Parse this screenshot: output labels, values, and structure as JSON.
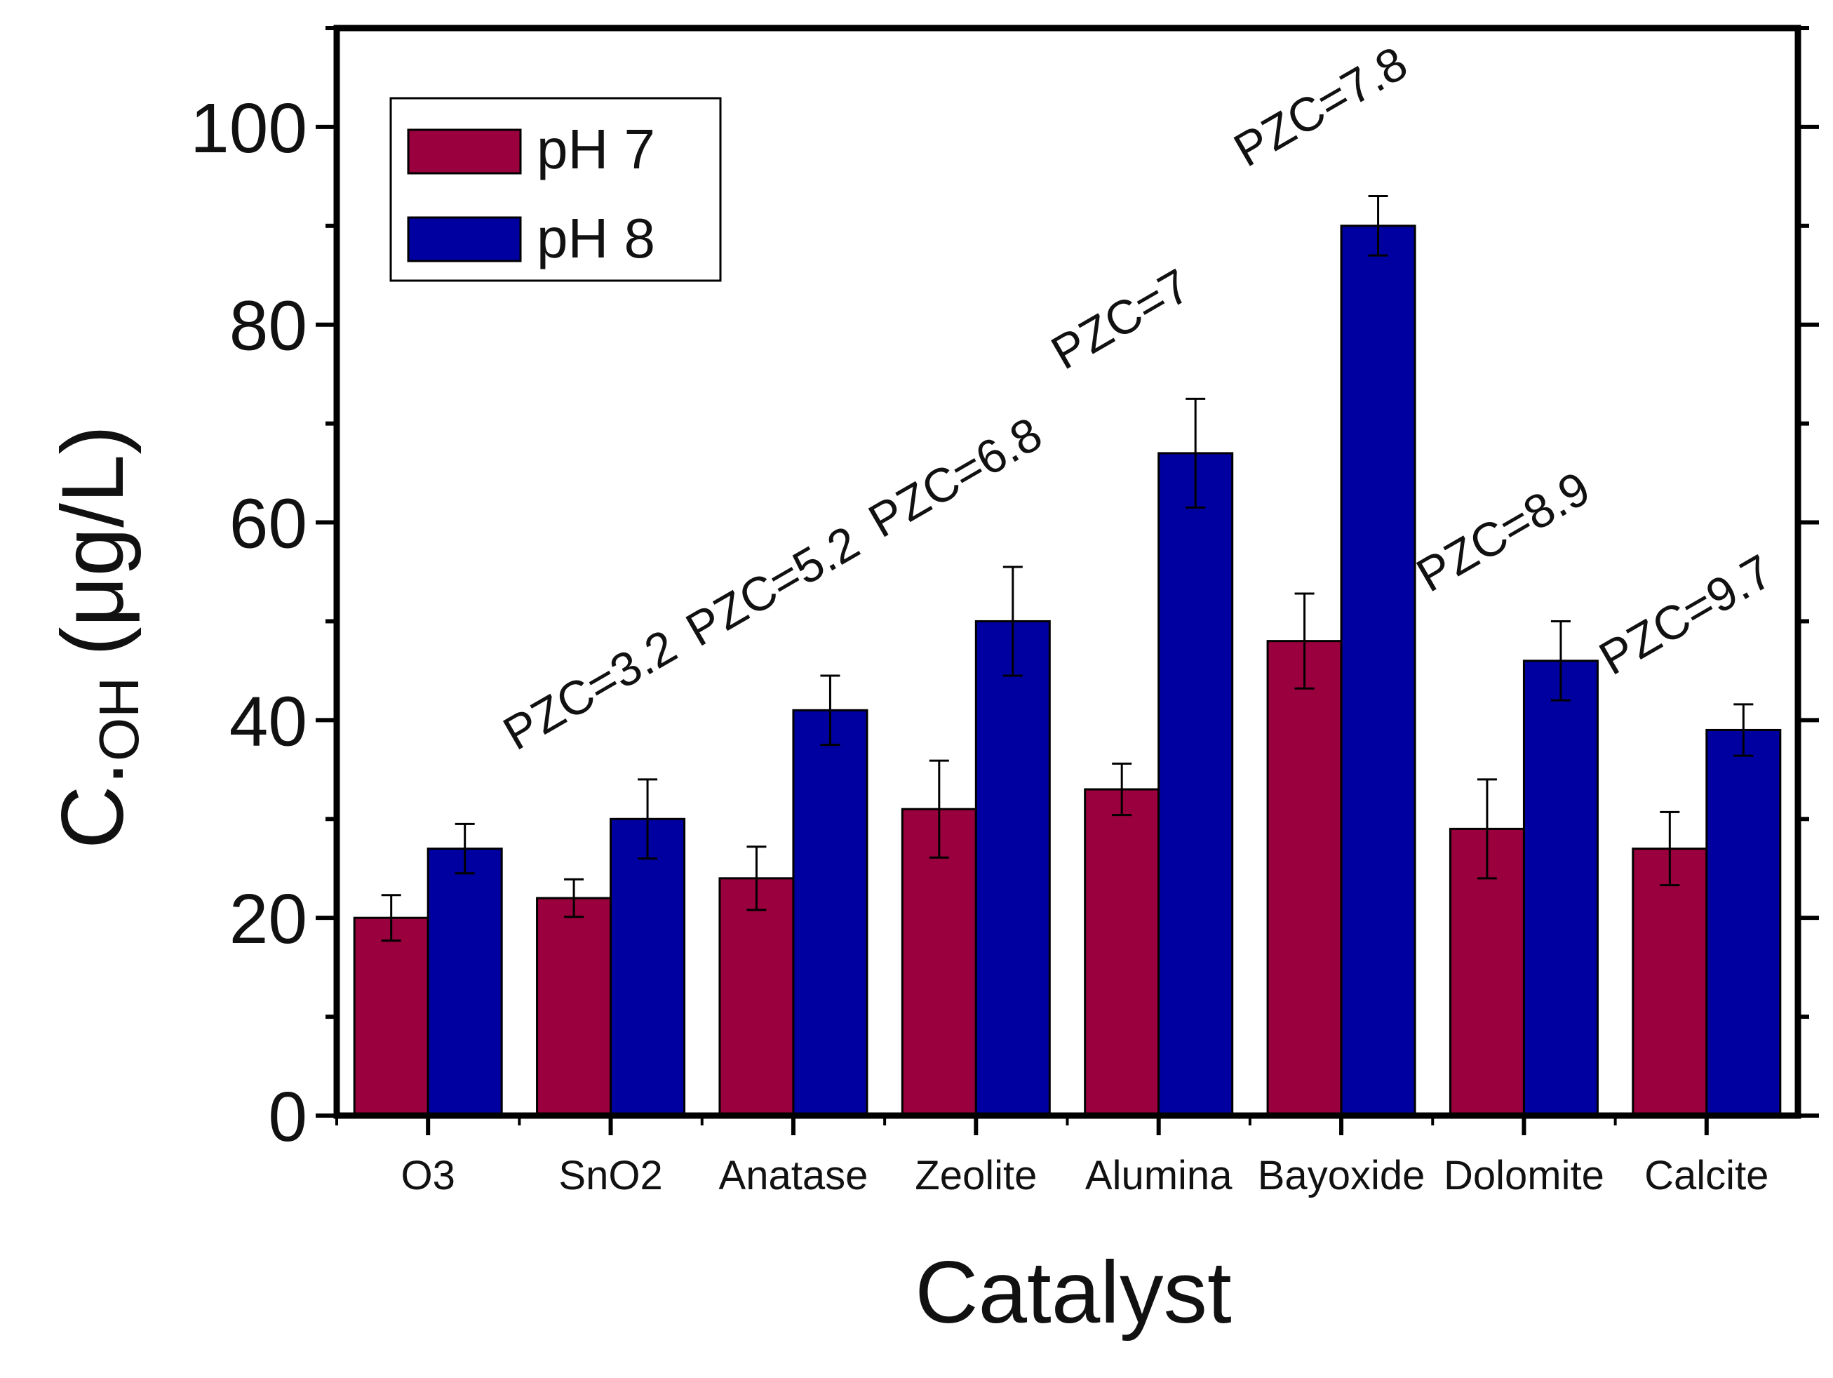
{
  "chart_data": {
    "type": "bar",
    "title": "",
    "xlabel": "Catalyst",
    "ylabel": {
      "main": "C",
      "dot": ".",
      "subscript": "OH",
      "unit": "(μg/L)"
    },
    "ylim": [
      0,
      110
    ],
    "yticks": [
      0,
      20,
      40,
      60,
      80,
      100
    ],
    "categories": [
      "O3",
      "SnO2",
      "Anatase",
      "Zeolite",
      "Alumina",
      "Bayoxide",
      "Dolomite",
      "Calcite"
    ],
    "series": [
      {
        "name": "pH 7",
        "color": "#99003D",
        "values": [
          20,
          22,
          24,
          31,
          33,
          48,
          29,
          27
        ],
        "errors": [
          2.3,
          1.9,
          3.2,
          4.9,
          2.6,
          4.8,
          5.0,
          3.7
        ]
      },
      {
        "name": "pH 8",
        "color": "#0000A0",
        "values": [
          27,
          30,
          41,
          50,
          67,
          90,
          46,
          39
        ],
        "errors": [
          2.5,
          4.0,
          3.5,
          5.5,
          5.5,
          3.0,
          4.0,
          2.6
        ]
      }
    ],
    "annotations": [
      "",
      "PZC=3.2",
      "PZC=5.2",
      "PZC=6.8",
      "PZC=7",
      "PZC=7.8",
      "PZC=8.9",
      "PZC=9.7"
    ],
    "legend": {
      "position": "top-left"
    }
  }
}
